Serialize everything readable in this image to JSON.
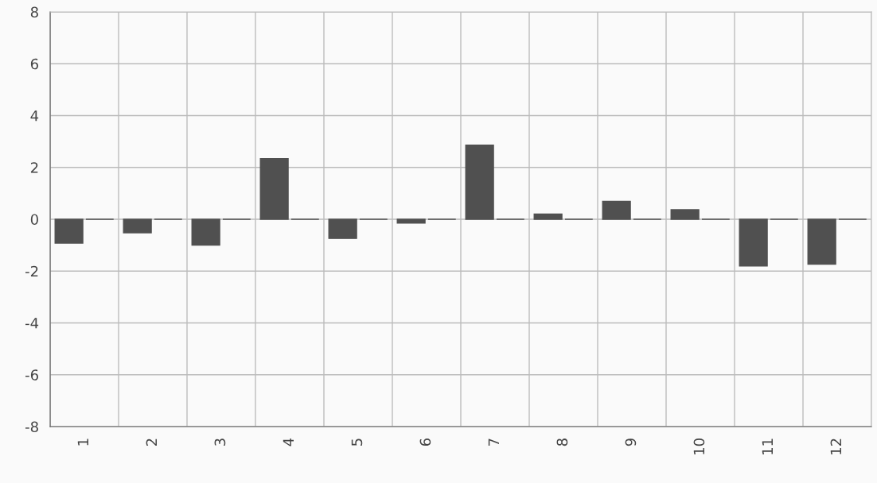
{
  "chart_data": {
    "type": "bar",
    "categories": [
      "1",
      "2",
      "3",
      "4",
      "5",
      "6",
      "7",
      "8",
      "9",
      "10",
      "11",
      "12"
    ],
    "series": [
      {
        "color": "#505050",
        "values": [
          -0.92,
          -0.52,
          -1.0,
          2.34,
          -0.74,
          -0.15,
          2.86,
          0.2,
          0.69,
          0.37,
          -1.8,
          -1.73
        ]
      },
      {
        "color": "#505050",
        "values": [
          0,
          0,
          0,
          0,
          0,
          0,
          0,
          0,
          0,
          0,
          0,
          0
        ]
      }
    ],
    "ylim": [
      -8,
      8
    ],
    "yticks": [
      -8,
      -6,
      -4,
      -2,
      0,
      2,
      4,
      6,
      8
    ],
    "grid": true
  }
}
